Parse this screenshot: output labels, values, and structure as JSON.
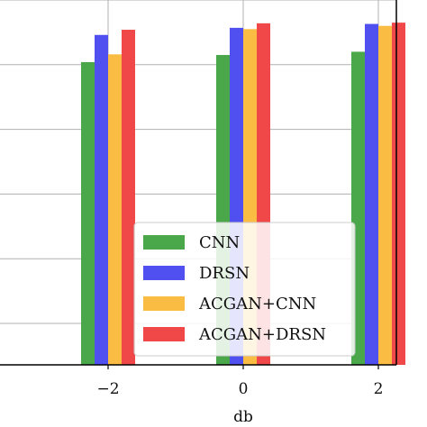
{
  "chart_data": {
    "type": "bar",
    "categories": [
      "−2",
      "0",
      "2"
    ],
    "series": [
      {
        "name": "CNN",
        "color": "#4aa84a",
        "values": [
          90.4,
          91.5,
          92.0
        ]
      },
      {
        "name": "DRSN",
        "color": "#5050f0",
        "values": [
          94.6,
          95.7,
          96.3
        ]
      },
      {
        "name": "ACGAN+CNN",
        "color": "#fbbc44",
        "values": [
          91.6,
          95.5,
          96.0
        ]
      },
      {
        "name": "ACGAN+DRSN",
        "color": "#f04848",
        "values": [
          95.4,
          96.4,
          96.5
        ]
      }
    ],
    "xlabel": "db",
    "ylabel": "",
    "ylim": [
      43.6,
      100.0
    ],
    "ygrid_values": [
      50,
      60,
      70,
      80,
      90,
      100
    ],
    "grid": true,
    "legend_position": "lower-center"
  }
}
